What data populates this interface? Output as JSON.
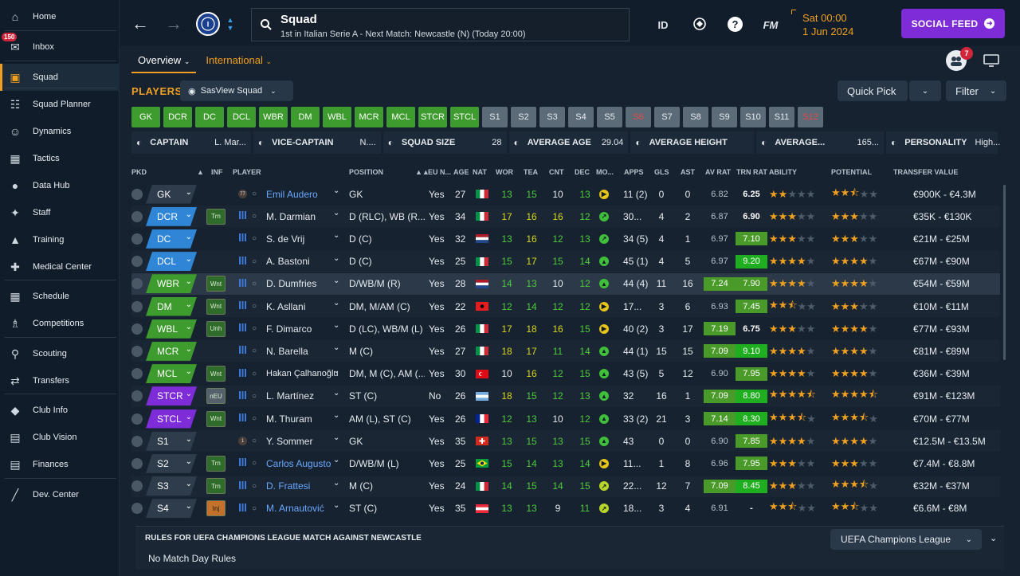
{
  "sidebar": {
    "badge": "150",
    "items": [
      {
        "label": "Home",
        "icon": "home-icon"
      },
      {
        "label": "Inbox",
        "icon": "inbox-icon"
      },
      {
        "label": "Squad",
        "icon": "shirt-icon"
      },
      {
        "label": "Squad Planner",
        "icon": "clipboard-icon"
      },
      {
        "label": "Dynamics",
        "icon": "people-icon"
      },
      {
        "label": "Tactics",
        "icon": "tactics-board-icon"
      },
      {
        "label": "Data Hub",
        "icon": "data-icon"
      },
      {
        "label": "Staff",
        "icon": "staff-icon"
      },
      {
        "label": "Training",
        "icon": "cone-icon"
      },
      {
        "label": "Medical Center",
        "icon": "medical-icon"
      },
      {
        "label": "Schedule",
        "icon": "calendar-icon"
      },
      {
        "label": "Competitions",
        "icon": "trophy-icon"
      },
      {
        "label": "Scouting",
        "icon": "magnifier-icon"
      },
      {
        "label": "Transfers",
        "icon": "transfer-icon"
      },
      {
        "label": "Club Info",
        "icon": "shield-icon"
      },
      {
        "label": "Club Vision",
        "icon": "briefcase-icon"
      },
      {
        "label": "Finances",
        "icon": "money-icon"
      },
      {
        "label": "Dev. Center",
        "icon": "trend-icon"
      }
    ]
  },
  "topbar": {
    "title": "Squad",
    "subtitle": "1st in Italian Serie A - Next Match: Newcastle (N) (Today 20:00)",
    "id_label": "ID",
    "fm_label": "FM",
    "help_label": "?",
    "date_line1": "Sat 00:00",
    "date_line2": "1 Jun 2024",
    "social_label": "SOCIAL FEED",
    "notif_count": "7"
  },
  "tabs": {
    "overview": "Overview",
    "international": "International"
  },
  "toolbar": {
    "players_label": "PLAYERS",
    "view_label": "SasView Squad",
    "quick_pick": "Quick Pick",
    "filter": "Filter"
  },
  "chips": [
    {
      "label": "GK",
      "type": "g",
      "w": 36
    },
    {
      "label": "DCR",
      "type": "g",
      "w": 36
    },
    {
      "label": "DC",
      "type": "g",
      "w": 36
    },
    {
      "label": "DCL",
      "type": "g",
      "w": 36
    },
    {
      "label": "WBR",
      "type": "g",
      "w": 36
    },
    {
      "label": "DM",
      "type": "g",
      "w": 36
    },
    {
      "label": "WBL",
      "type": "g",
      "w": 36
    },
    {
      "label": "MCR",
      "type": "g",
      "w": 36
    },
    {
      "label": "MCL",
      "type": "g",
      "w": 36
    },
    {
      "label": "STCR",
      "type": "g",
      "w": 36
    },
    {
      "label": "STCL",
      "type": "g",
      "w": 36
    },
    {
      "label": "S1",
      "type": "s",
      "w": 32
    },
    {
      "label": "S2",
      "type": "s",
      "w": 32
    },
    {
      "label": "S3",
      "type": "s",
      "w": 32
    },
    {
      "label": "S4",
      "type": "s",
      "w": 32
    },
    {
      "label": "S5",
      "type": "s",
      "w": 32
    },
    {
      "label": "S6",
      "type": "r",
      "w": 32
    },
    {
      "label": "S7",
      "type": "s",
      "w": 32
    },
    {
      "label": "S8",
      "type": "s",
      "w": 32
    },
    {
      "label": "S9",
      "type": "s",
      "w": 32
    },
    {
      "label": "S10",
      "type": "s",
      "w": 32
    },
    {
      "label": "S11",
      "type": "s",
      "w": 32
    },
    {
      "label": "S12",
      "type": "r",
      "w": 32
    }
  ],
  "info": [
    {
      "label": "CAPTAIN",
      "value": "L. Mar...",
      "icon": "armband-icon",
      "w": 150
    },
    {
      "label": "VICE-CAPTAIN",
      "value": "N....",
      "icon": "armband-icon",
      "w": 160
    },
    {
      "label": "SQUAD SIZE",
      "value": "28",
      "icon": "squad-icon",
      "w": 155
    },
    {
      "label": "AVERAGE AGE",
      "value": "29.04",
      "icon": "cake-icon",
      "w": 150
    },
    {
      "label": "AVERAGE HEIGHT",
      "value": "",
      "icon": "height-icon",
      "w": 155
    },
    {
      "label": "AVERAGE...",
      "value": "165...",
      "icon": "weight-icon",
      "w": 160
    },
    {
      "label": "PERSONALITY",
      "value": "High...",
      "icon": "gears-icon",
      "w": 140
    }
  ],
  "headers": {
    "pkd": "PKD",
    "inf": "INF",
    "player": "PLAYER",
    "position": "POSITION",
    "eu": "EU N...",
    "age": "AGE",
    "nat": "NAT",
    "wor": "WOR",
    "tea": "TEA",
    "cnt": "CNT",
    "dec": "DEC",
    "mo": "MO...",
    "apps": "APPS",
    "gls": "GLS",
    "ast": "AST",
    "avrat": "AV RAT",
    "trnrat": "TRN RAT",
    "ability": "ABILITY",
    "potential": "POTENTIAL",
    "value": "TRANSFER VALUE"
  },
  "colors": {
    "green_pos": "#3e9b2e",
    "blue_pos": "#2f86d6",
    "purple_pos": "#7e2bd8",
    "sub_pos": "#2e3c4b",
    "accent": "#f0a020"
  },
  "rows": [
    {
      "pos": "GK",
      "pc": "sub",
      "inf": "",
      "shirt": "77",
      "name": "Emil Audero",
      "link": true,
      "position": "GK",
      "eu": "Yes",
      "age": "27",
      "nat": "it",
      "wor": "13",
      "tea": "15",
      "cnt": "10",
      "dec": "13",
      "mo": "y",
      "apps": "11 (2)",
      "gls": "0",
      "ast": "0",
      "av": "6.82",
      "avbg": "",
      "trn": "6.25",
      "trnbg": "",
      "ab": 2,
      "abh": false,
      "po": 2,
      "poh": true,
      "val": "€900K - €4.3M"
    },
    {
      "pos": "DCR",
      "pc": "blue",
      "inf": "Trn",
      "shirt": "",
      "name": "M. Darmian",
      "link": false,
      "position": "D (RLC), WB (R...",
      "eu": "Yes",
      "age": "34",
      "nat": "it",
      "wor": "17",
      "tea": "16",
      "cnt": "16",
      "dec": "12",
      "mo": "g",
      "apps": "30...",
      "gls": "4",
      "ast": "2",
      "av": "6.87",
      "avbg": "",
      "trn": "6.90",
      "trnbg": "",
      "ab": 3,
      "abh": false,
      "po": 3,
      "poh": false,
      "val": "€35K - €130K"
    },
    {
      "pos": "DC",
      "pc": "blue",
      "inf": "",
      "shirt": "",
      "name": "S. de Vrij",
      "link": false,
      "position": "D (C)",
      "eu": "Yes",
      "age": "32",
      "nat": "nl",
      "wor": "13",
      "tea": "16",
      "cnt": "12",
      "dec": "13",
      "mo": "g",
      "apps": "34 (5)",
      "gls": "4",
      "ast": "1",
      "av": "6.97",
      "avbg": "",
      "trn": "7.10",
      "trnbg": "g",
      "ab": 3,
      "abh": false,
      "po": 3,
      "poh": false,
      "val": "€21M - €25M"
    },
    {
      "pos": "DCL",
      "pc": "blue",
      "inf": "",
      "shirt": "",
      "name": "A. Bastoni",
      "link": false,
      "position": "D (C)",
      "eu": "Yes",
      "age": "25",
      "nat": "it",
      "wor": "15",
      "tea": "17",
      "cnt": "15",
      "dec": "14",
      "mo": "G",
      "apps": "45 (1)",
      "gls": "4",
      "ast": "5",
      "av": "6.97",
      "avbg": "",
      "trn": "9.20",
      "trnbg": "G",
      "ab": 4,
      "abh": false,
      "po": 4,
      "poh": false,
      "val": "€67M - €90M"
    },
    {
      "pos": "WBR",
      "pc": "green",
      "inf": "Wnt",
      "shirt": "",
      "name": "D. Dumfries",
      "link": false,
      "position": "D/WB/M (R)",
      "eu": "Yes",
      "age": "28",
      "nat": "nl",
      "wor": "14",
      "tea": "13",
      "cnt": "10",
      "dec": "12",
      "mo": "G",
      "apps": "44 (4)",
      "gls": "11",
      "ast": "16",
      "av": "7.24",
      "avbg": "g",
      "trn": "7.90",
      "trnbg": "g",
      "ab": 4,
      "abh": false,
      "po": 4,
      "poh": false,
      "val": "€54M - €59M"
    },
    {
      "pos": "DM",
      "pc": "green",
      "inf": "Wnt",
      "shirt": "",
      "name": "K. Asllani",
      "link": false,
      "position": "DM, M/AM (C)",
      "eu": "Yes",
      "age": "22",
      "nat": "al",
      "wor": "12",
      "tea": "14",
      "cnt": "12",
      "dec": "12",
      "mo": "y",
      "apps": "17...",
      "gls": "3",
      "ast": "6",
      "av": "6.93",
      "avbg": "",
      "trn": "7.45",
      "trnbg": "g",
      "ab": 2,
      "abh": true,
      "po": 3,
      "poh": false,
      "val": "€10M - €11M"
    },
    {
      "pos": "WBL",
      "pc": "green",
      "inf": "Unh",
      "shirt": "",
      "name": "F. Dimarco",
      "link": false,
      "position": "D (LC), WB/M (L)",
      "eu": "Yes",
      "age": "26",
      "nat": "it",
      "wor": "17",
      "tea": "18",
      "cnt": "16",
      "dec": "15",
      "mo": "y",
      "apps": "40 (2)",
      "gls": "3",
      "ast": "17",
      "av": "7.19",
      "avbg": "g",
      "trn": "6.75",
      "trnbg": "",
      "ab": 3,
      "abh": false,
      "po": 4,
      "poh": false,
      "val": "€77M - €93M"
    },
    {
      "pos": "MCR",
      "pc": "green",
      "inf": "",
      "shirt": "",
      "name": "N. Barella",
      "link": false,
      "position": "M (C)",
      "eu": "Yes",
      "age": "27",
      "nat": "it",
      "wor": "18",
      "tea": "17",
      "cnt": "11",
      "dec": "14",
      "mo": "G",
      "apps": "44 (1)",
      "gls": "15",
      "ast": "15",
      "av": "7.09",
      "avbg": "g",
      "trn": "9.10",
      "trnbg": "G",
      "ab": 4,
      "abh": false,
      "po": 4,
      "poh": false,
      "val": "€81M - €89M"
    },
    {
      "pos": "MCL",
      "pc": "green",
      "inf": "Wnt",
      "shirt": "",
      "name": "Hakan Çalhanoğlu",
      "link": false,
      "position": "DM, M (C), AM (...",
      "eu": "Yes",
      "age": "30",
      "nat": "tr",
      "wor": "10",
      "tea": "16",
      "cnt": "12",
      "dec": "15",
      "mo": "G",
      "apps": "43 (5)",
      "gls": "5",
      "ast": "12",
      "av": "6.90",
      "avbg": "",
      "trn": "7.95",
      "trnbg": "g",
      "ab": 4,
      "abh": false,
      "po": 4,
      "poh": false,
      "val": "€36M - €39M"
    },
    {
      "pos": "STCR",
      "pc": "purple",
      "inf": "nEU",
      "shirt": "",
      "name": "L. Martínez",
      "link": false,
      "position": "ST (C)",
      "eu": "No",
      "age": "26",
      "nat": "ar",
      "wor": "18",
      "tea": "15",
      "cnt": "12",
      "dec": "13",
      "mo": "G",
      "apps": "32",
      "gls": "16",
      "ast": "1",
      "av": "7.09",
      "avbg": "g",
      "trn": "8.80",
      "trnbg": "G",
      "ab": 4,
      "abh": true,
      "po": 4,
      "poh": true,
      "val": "€91M - €123M"
    },
    {
      "pos": "STCL",
      "pc": "purple",
      "inf": "Wnt",
      "shirt": "",
      "name": "M. Thuram",
      "link": false,
      "position": "AM (L), ST (C)",
      "eu": "Yes",
      "age": "26",
      "nat": "fr",
      "wor": "12",
      "tea": "13",
      "cnt": "10",
      "dec": "12",
      "mo": "G",
      "apps": "33 (2)",
      "gls": "21",
      "ast": "3",
      "av": "7.14",
      "avbg": "g",
      "trn": "8.30",
      "trnbg": "G",
      "ab": 3,
      "abh": true,
      "po": 3,
      "poh": true,
      "val": "€70M - €77M"
    },
    {
      "pos": "S1",
      "pc": "sub",
      "inf": "",
      "shirt": "1",
      "name": "Y. Sommer",
      "link": false,
      "position": "GK",
      "eu": "Yes",
      "age": "35",
      "nat": "ch",
      "wor": "13",
      "tea": "15",
      "cnt": "13",
      "dec": "15",
      "mo": "G",
      "apps": "43",
      "gls": "0",
      "ast": "0",
      "av": "6.90",
      "avbg": "",
      "trn": "7.85",
      "trnbg": "g",
      "ab": 4,
      "abh": false,
      "po": 4,
      "poh": false,
      "val": "€12.5M - €13.5M"
    },
    {
      "pos": "S2",
      "pc": "sub",
      "inf": "Trn",
      "shirt": "",
      "name": "Carlos Augusto",
      "link": true,
      "position": "D/WB/M (L)",
      "eu": "Yes",
      "age": "25",
      "nat": "br",
      "wor": "15",
      "tea": "14",
      "cnt": "13",
      "dec": "14",
      "mo": "y",
      "apps": "11...",
      "gls": "1",
      "ast": "8",
      "av": "6.96",
      "avbg": "",
      "trn": "7.95",
      "trnbg": "g",
      "ab": 3,
      "abh": false,
      "po": 3,
      "poh": false,
      "val": "€7.4M - €8.8M"
    },
    {
      "pos": "S3",
      "pc": "sub",
      "inf": "Trn",
      "shirt": "",
      "name": "D. Frattesi",
      "link": true,
      "position": "M (C)",
      "eu": "Yes",
      "age": "24",
      "nat": "it",
      "wor": "14",
      "tea": "15",
      "cnt": "14",
      "dec": "15",
      "mo": "l",
      "apps": "22...",
      "gls": "12",
      "ast": "7",
      "av": "7.09",
      "avbg": "g",
      "trn": "8.45",
      "trnbg": "G",
      "ab": 3,
      "abh": false,
      "po": 3,
      "poh": true,
      "val": "€32M - €37M"
    },
    {
      "pos": "S4",
      "pc": "sub",
      "inf": "Inj",
      "shirt": "",
      "name": "M. Arnautović",
      "link": true,
      "position": "ST (C)",
      "eu": "Yes",
      "age": "35",
      "nat": "at",
      "wor": "13",
      "tea": "13",
      "cnt": "9",
      "dec": "11",
      "mo": "l",
      "apps": "18...",
      "gls": "3",
      "ast": "4",
      "av": "6.91",
      "avbg": "",
      "trn": "-",
      "trnbg": "",
      "ab": 2,
      "abh": true,
      "po": 2,
      "poh": true,
      "val": "€6.6M - €8M"
    }
  ],
  "rules": {
    "title": "RULES FOR UEFA CHAMPIONS LEAGUE MATCH AGAINST NEWCASTLE",
    "text": "No Match Day Rules",
    "competition": "UEFA Champions League"
  }
}
